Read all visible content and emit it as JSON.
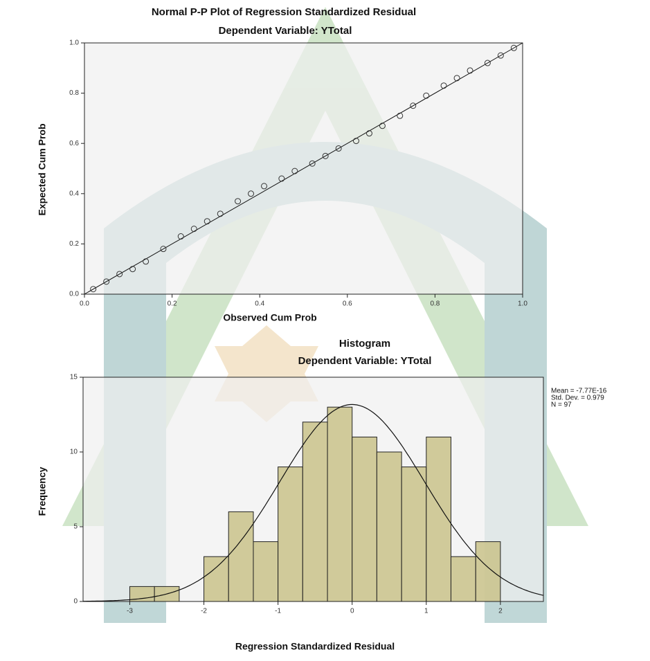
{
  "chart_data": [
    {
      "type": "scatter",
      "title": "Normal P-P Plot of Regression Standardized Residual",
      "subtitle": "Dependent Variable: YTotal",
      "x_label": "Observed Cum Prob",
      "y_label": "Expected Cum Prob",
      "xlim": [
        0,
        1
      ],
      "ylim": [
        0,
        1
      ],
      "xticks": [
        {
          "value": 0,
          "label": "0.0"
        },
        {
          "value": 0.2,
          "label": "0.2"
        },
        {
          "value": 0.4,
          "label": "0.4"
        },
        {
          "value": 0.6,
          "label": "0.6"
        },
        {
          "value": 0.8,
          "label": "0.8"
        },
        {
          "value": 1,
          "label": "1.0"
        }
      ],
      "yticks": [
        {
          "value": 0,
          "label": "0.0"
        },
        {
          "value": 0.2,
          "label": "0.2"
        },
        {
          "value": 0.4,
          "label": "0.4"
        },
        {
          "value": 0.6,
          "label": "0.6"
        },
        {
          "value": 0.8,
          "label": "0.8"
        },
        {
          "value": 1,
          "label": "1.0"
        }
      ],
      "x": [
        0.02,
        0.05,
        0.08,
        0.11,
        0.14,
        0.18,
        0.22,
        0.25,
        0.28,
        0.31,
        0.35,
        0.38,
        0.41,
        0.45,
        0.48,
        0.52,
        0.55,
        0.58,
        0.62,
        0.65,
        0.68,
        0.72,
        0.75,
        0.78,
        0.82,
        0.85,
        0.88,
        0.92,
        0.95,
        0.98
      ],
      "values": [
        0.02,
        0.05,
        0.08,
        0.1,
        0.13,
        0.18,
        0.23,
        0.26,
        0.29,
        0.32,
        0.37,
        0.4,
        0.43,
        0.46,
        0.49,
        0.52,
        0.55,
        0.58,
        0.61,
        0.64,
        0.67,
        0.71,
        0.75,
        0.79,
        0.83,
        0.86,
        0.89,
        0.92,
        0.95,
        0.98
      ],
      "color": "#333333",
      "reference_line": true
    },
    {
      "type": "histogram",
      "title": "Histogram",
      "subtitle": "Dependent Variable: YTotal",
      "x_label": "Regression Standardized Residual",
      "y_label": "Frequency",
      "xlim": [
        -3.63,
        2.58
      ],
      "ylim": [
        0,
        15
      ],
      "xticks": [
        -3,
        -2,
        -1,
        0,
        1,
        2
      ],
      "yticks": [
        0,
        5,
        10,
        15
      ],
      "bins": [
        -3,
        -2.667,
        -2.333,
        -2,
        -1.667,
        -1.333,
        -1,
        -0.667,
        -0.333,
        0,
        0.333,
        0.667,
        1,
        1.333,
        1.667,
        2
      ],
      "values": [
        1,
        1,
        0,
        3,
        6,
        4,
        9,
        12,
        13,
        11,
        10,
        9,
        11,
        3,
        4
      ],
      "color": "#c9c28a",
      "stats": [
        {
          "value": -7.77e-16,
          "label": "Mean = -7.77E-16"
        },
        {
          "value": 0.979,
          "label": "Std. Dev. = 0.979"
        },
        {
          "value": 97,
          "label": "N = 97"
        }
      ]
    }
  ]
}
